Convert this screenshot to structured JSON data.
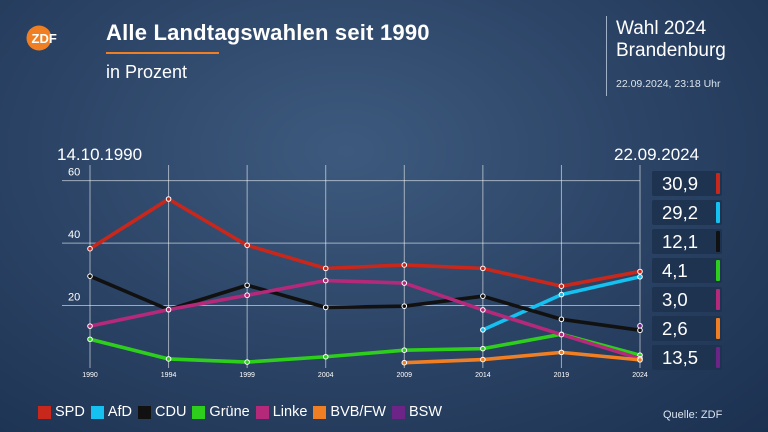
{
  "header": {
    "logo_text": "ZDF",
    "title": "Alle Landtagswahlen seit 1990",
    "subtitle": "in Prozent",
    "election_line1": "Wahl 2024",
    "election_line2": "Brandenburg",
    "timestamp": "22.09.2024, 23:18 Uhr"
  },
  "dates": {
    "start": "14.10.1990",
    "end": "22.09.2024"
  },
  "footer": {
    "source": "Quelle: ZDF"
  },
  "colors": {
    "orange_accent": "#f07f24"
  },
  "chart_data": {
    "type": "line",
    "x": [
      "1990",
      "1994",
      "1999",
      "2004",
      "2009",
      "2014",
      "2019",
      "2024"
    ],
    "ylim": [
      0,
      65
    ],
    "yticks": [
      "20",
      "40",
      "60"
    ],
    "grid": true,
    "legend_position": "bottom",
    "series": [
      {
        "name": "SPD",
        "color": "#c8271c",
        "values": [
          38.2,
          54.1,
          39.3,
          31.9,
          33.0,
          31.9,
          26.2,
          30.9
        ],
        "final_label": "30,9"
      },
      {
        "name": "AfD",
        "color": "#14c1f0",
        "values": [
          null,
          null,
          null,
          null,
          null,
          12.2,
          23.5,
          29.2
        ],
        "final_label": "29,2"
      },
      {
        "name": "CDU",
        "color": "#111111",
        "values": [
          29.4,
          18.7,
          26.5,
          19.4,
          19.8,
          23.0,
          15.6,
          12.1
        ],
        "final_label": "12,1"
      },
      {
        "name": "Grüne",
        "color": "#2ecf1c",
        "values": [
          9.2,
          2.9,
          1.9,
          3.6,
          5.7,
          6.2,
          10.8,
          4.1
        ],
        "final_label": "4,1"
      },
      {
        "name": "Linke",
        "color": "#b4297a",
        "values": [
          13.4,
          18.7,
          23.3,
          28.0,
          27.2,
          18.6,
          10.7,
          3.0
        ],
        "final_label": "3,0"
      },
      {
        "name": "BVB/FW",
        "color": "#f07f24",
        "values": [
          null,
          null,
          null,
          null,
          1.7,
          2.7,
          5.0,
          2.6
        ],
        "final_label": "2,6"
      },
      {
        "name": "BSW",
        "color": "#6c2487",
        "values": [
          null,
          null,
          null,
          null,
          null,
          null,
          null,
          13.5
        ],
        "final_label": "13,5"
      }
    ]
  }
}
